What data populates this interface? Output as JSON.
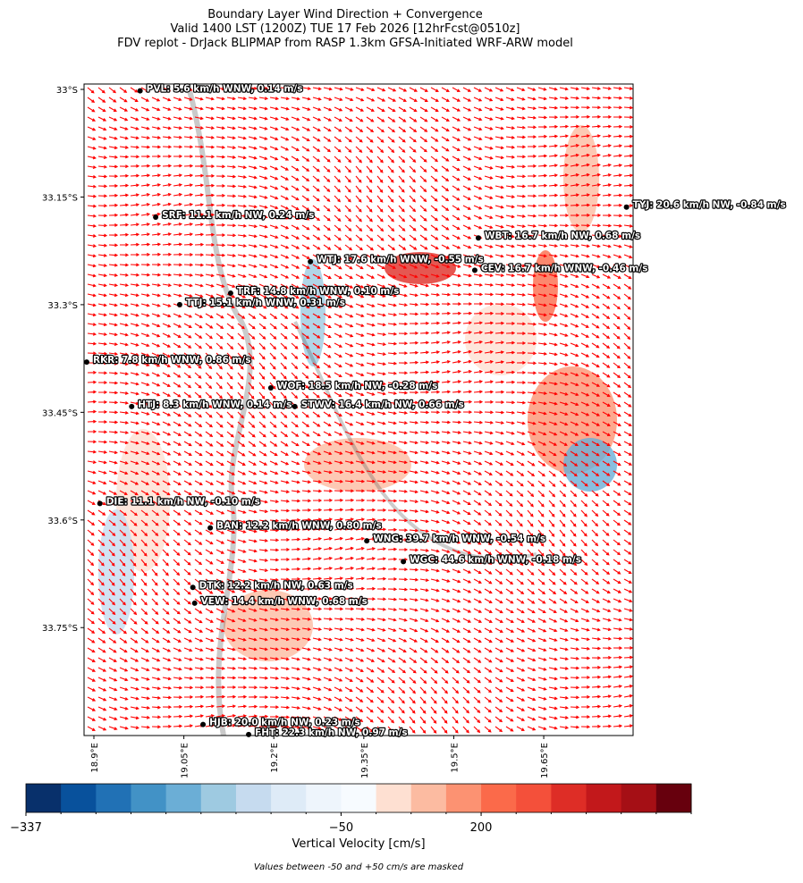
{
  "chart_data": {
    "type": "map",
    "title": "Boundary Layer Wind Direction + Convergence",
    "subtitle": "Valid 1400 LST (1200Z) TUE 17 Feb 2026 [12hrFcst@0510z]",
    "caption": "FDV replot - DrJack BLIPMAP from RASP 1.3km GFSA-Initiated WRF-ARW model",
    "xlim": [
      18.8836,
      19.799
    ],
    "ylim": [
      -32.9925,
      -33.9004
    ],
    "xticks": [
      {
        "value": 18.9,
        "label": "18.9°E"
      },
      {
        "value": 19.05,
        "label": "19.05°E"
      },
      {
        "value": 19.2,
        "label": "19.2°E"
      },
      {
        "value": 19.35,
        "label": "19.35°E"
      },
      {
        "value": 19.5,
        "label": "19.5°E"
      },
      {
        "value": 19.65,
        "label": "19.65°E"
      }
    ],
    "yticks": [
      {
        "value": -33,
        "label": "33°S"
      },
      {
        "value": -33.15,
        "label": "33.15°S"
      },
      {
        "value": -33.3,
        "label": "33.3°S"
      },
      {
        "value": -33.45,
        "label": "33.45°S"
      },
      {
        "value": -33.6,
        "label": "33.6°S"
      },
      {
        "value": -33.75,
        "label": "33.75°S"
      }
    ],
    "arrow_color": "#ff0000",
    "stations": [
      {
        "label": "PVL: 5.6 km/h WNW, 0.14 m/s",
        "lon": 18.977,
        "lat": -33.002
      },
      {
        "label": "SRF: 11.1 km/h NW, 0.24 m/s",
        "lon": 19.003,
        "lat": -33.178
      },
      {
        "label": "TYJ: 20.6 km/h NW, -0.84 m/s",
        "lon": 19.788,
        "lat": -33.164
      },
      {
        "label": "WBT: 16.7 km/h NW, 0.68 m/s",
        "lon": 19.541,
        "lat": -33.207
      },
      {
        "label": "WTJ: 17.6 km/h WNW, -0.55 m/s",
        "lon": 19.261,
        "lat": -33.24
      },
      {
        "label": "CEV: 16.7 km/h WNW, -0.46 m/s",
        "lon": 19.535,
        "lat": -33.252
      },
      {
        "label": "TRF: 14.8 km/h WNW, 0.10 m/s",
        "lon": 19.128,
        "lat": -33.284
      },
      {
        "label": "TTJ: 15.1 km/h WNW, 0.31 m/s",
        "lon": 19.043,
        "lat": -33.3
      },
      {
        "label": "RKR: 7.8 km/h WNW, 0.86 m/s",
        "lon": 18.888,
        "lat": -33.38
      },
      {
        "label": "WOF: 18.5 km/h NW, -0.28 m/s",
        "lon": 19.195,
        "lat": -33.416
      },
      {
        "label": "HTJ: 8.3 km/h WNW, 0.14 m/s",
        "lon": 18.963,
        "lat": -33.442
      },
      {
        "label": "STWV: 16.4 km/h NW, 0.66 m/s",
        "lon": 19.235,
        "lat": -33.442
      },
      {
        "label": "DIE: 11.1 km/h NW, -0.10 m/s",
        "lon": 18.91,
        "lat": -33.577
      },
      {
        "label": "BAN: 12.2 km/h WNW, 0.80 m/s",
        "lon": 19.094,
        "lat": -33.611
      },
      {
        "label": "WNG: 39.7 km/h WNW, -0.54 m/s",
        "lon": 19.355,
        "lat": -33.629
      },
      {
        "label": "WGC: 44.6 km/h WNW, -0.18 m/s",
        "lon": 19.416,
        "lat": -33.658
      },
      {
        "label": "DTK: 12.2 km/h NW, 0.63 m/s",
        "lon": 19.065,
        "lat": -33.694
      },
      {
        "label": "VEW: 14.4 km/h WNW, 0.68 m/s",
        "lon": 19.068,
        "lat": -33.716
      },
      {
        "label": "HJB: 20.0 km/h NW, 0.23 m/s",
        "lon": 19.082,
        "lat": -33.885
      },
      {
        "label": "FHT: 22.3 km/h NW, 0.97 m/s",
        "lon": 19.158,
        "lat": -33.899
      }
    ],
    "colorbar": {
      "label": "Vertical Velocity [cm/s]",
      "levels": [
        -337,
        -305,
        -273,
        -241,
        -209,
        -177,
        -145,
        -113,
        -81,
        -50,
        50,
        100,
        150,
        200,
        250,
        300,
        350,
        400,
        450,
        500
      ],
      "colors": [
        "#08306b",
        "#08519c",
        "#2171b5",
        "#4292c6",
        "#6baed6",
        "#9ecae1",
        "#c6dbef",
        "#deebf7",
        "#eef5fc",
        "#f7fbff",
        "#fee0d2",
        "#fcbba1",
        "#fc9272",
        "#fb6a4a",
        "#f4503a",
        "#de2d26",
        "#c2181b",
        "#a50f15",
        "#67000d"
      ],
      "ticks": [
        {
          "value": -337,
          "label": "−337"
        },
        {
          "value": -50,
          "label": "−50"
        },
        200
      ],
      "note": "Values between -50 and +50 cm/s are masked"
    }
  }
}
